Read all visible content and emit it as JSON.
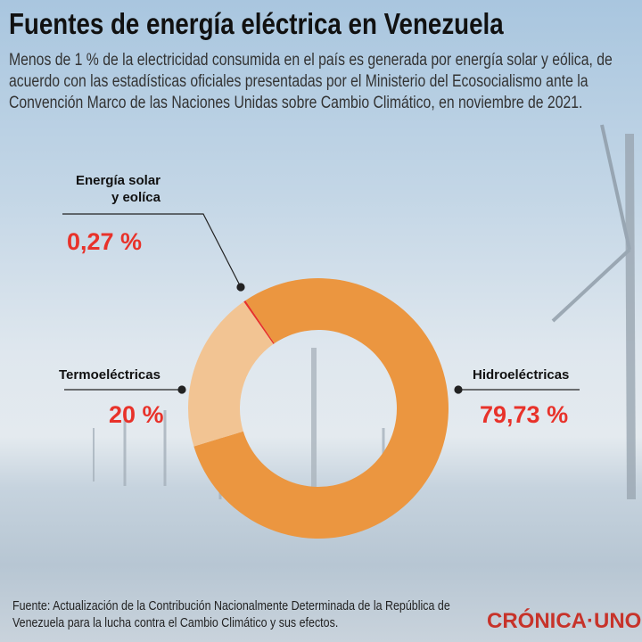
{
  "title": "Fuentes de energía eléctrica en Venezuela",
  "subtitle": "Menos de 1 % de la electricidad consumida en el país es generada por energía solar y eólica, de acuerdo con las estadísticas oficiales presentadas por el Ministerio del Ecosocialismo ante la Convención Marco de las Naciones Unidas sobre Cambio Climático, en noviembre de 2021.",
  "chart_data": {
    "type": "pie",
    "donut": true,
    "categories": [
      "Energía solar y eolíca",
      "Hidroeléctricas",
      "Termoeléctricas"
    ],
    "values": [
      0.27,
      79.73,
      20
    ],
    "labels": [
      "0,27 %",
      "79,73 %",
      "20 %"
    ],
    "colors": [
      "#e8322a",
      "#eb9640",
      "#f2c493"
    ],
    "label_lines": [
      "Energía solar",
      "y eolíca"
    ]
  },
  "source": "Fuente: Actualización de la Contribución Nacionalmente Determinada  de la República de Venezuela para la lucha contra el Cambio Climático y sus efectos.",
  "logo": "CRÓNICA·UNO"
}
